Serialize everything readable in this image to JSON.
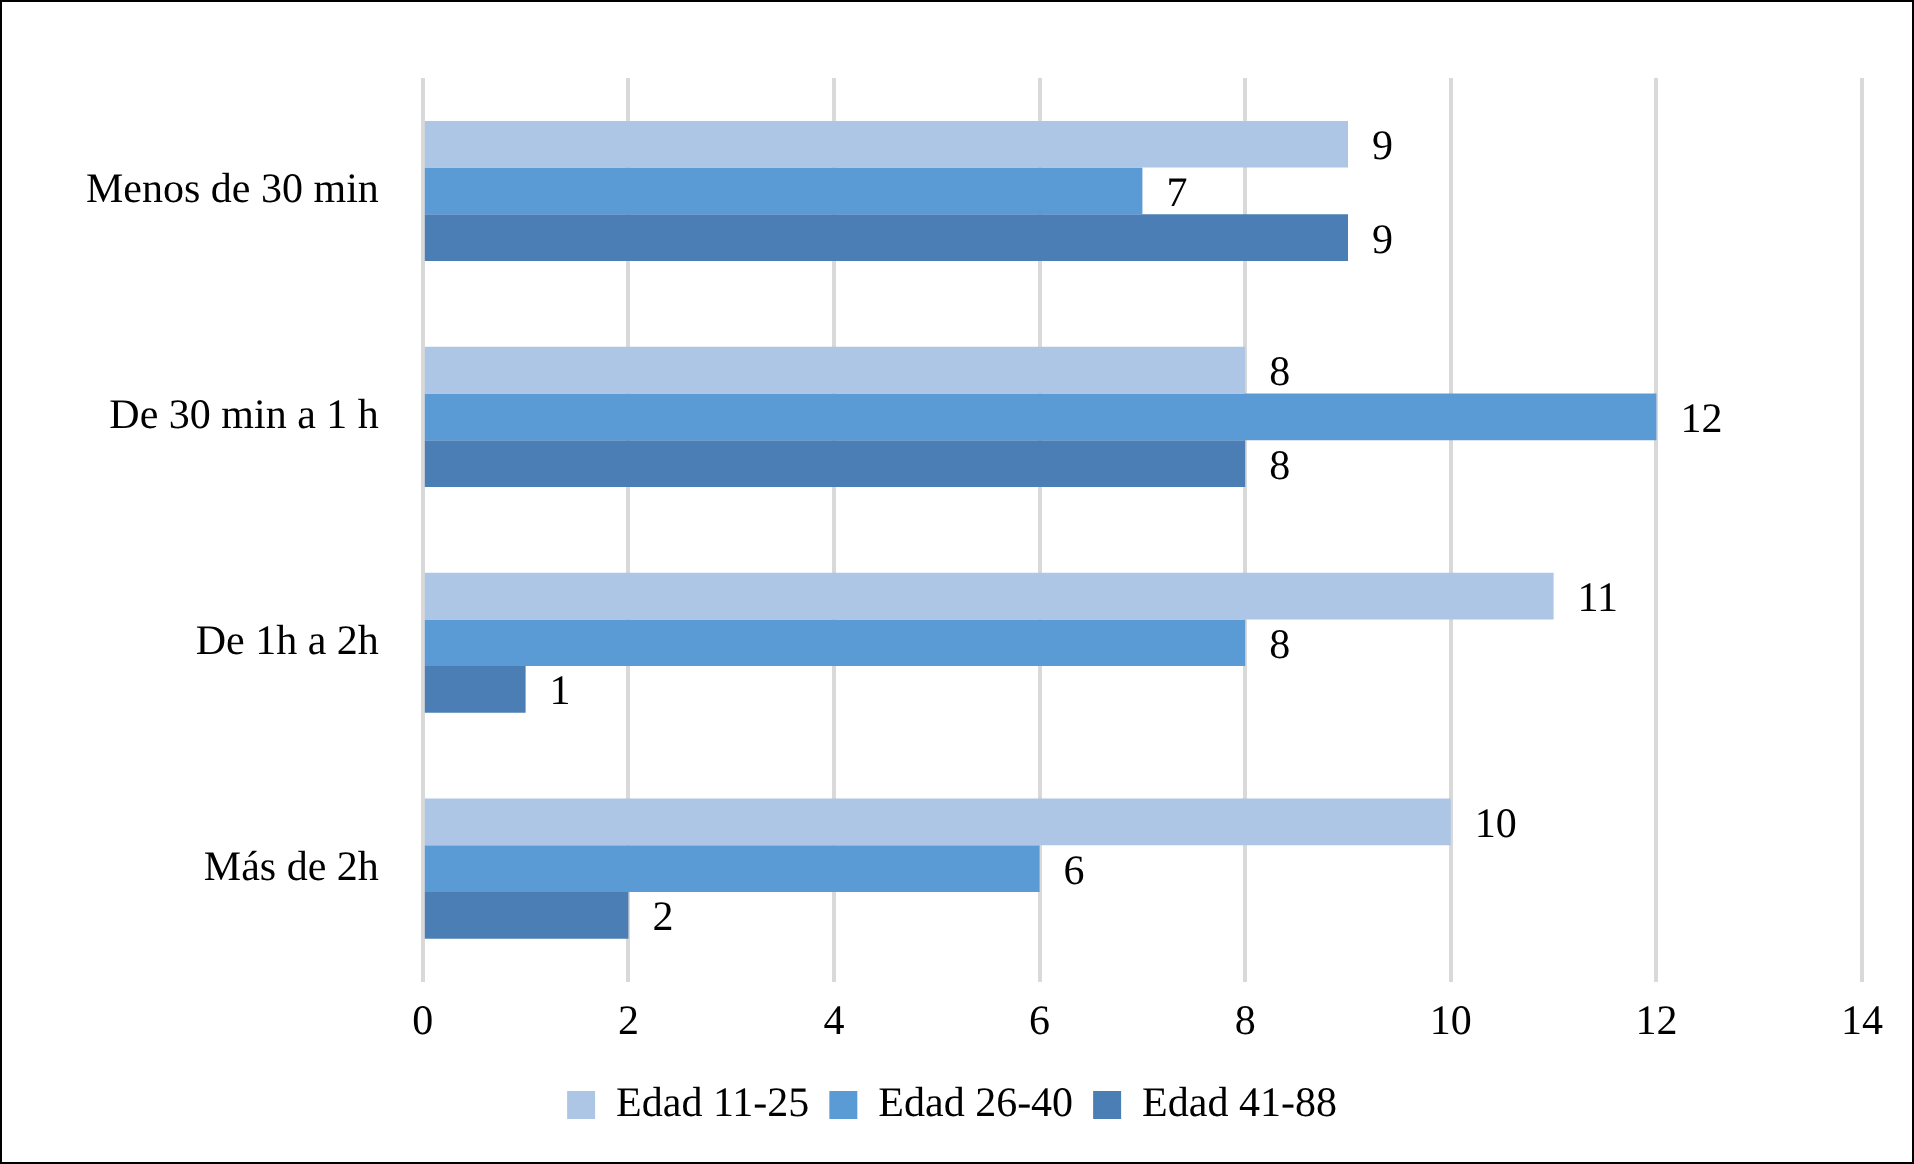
{
  "chart_data": {
    "type": "bar",
    "orientation": "horizontal",
    "categories": [
      "Menos de 30 min",
      "De 30 min a 1 h",
      "De 1h a 2h",
      "Más de 2h"
    ],
    "series": [
      {
        "name": "Edad 11-25",
        "color": "#aec6e6",
        "values": [
          9,
          8,
          11,
          10
        ]
      },
      {
        "name": "Edad 26-40",
        "color": "#5b9bd5",
        "values": [
          7,
          12,
          8,
          6
        ]
      },
      {
        "name": "Edad 41-88",
        "color": "#4a7eb4",
        "values": [
          9,
          8,
          1,
          2
        ]
      }
    ],
    "xlim": [
      0,
      14
    ],
    "xticks": [
      0,
      2,
      4,
      6,
      8,
      10,
      12,
      14
    ],
    "grid": "x",
    "legend": "bottom",
    "data_labels": true
  }
}
